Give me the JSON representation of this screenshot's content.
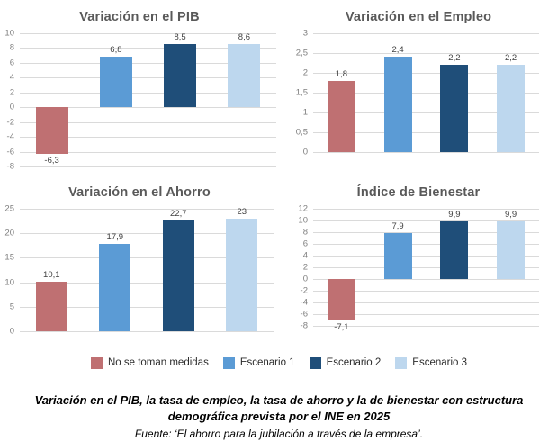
{
  "series_colors": [
    "#bf7072",
    "#5b9bd5",
    "#1f4e79",
    "#bdd7ee"
  ],
  "legend": {
    "items": [
      {
        "label": "No se toman medidas",
        "color": "#bf7072"
      },
      {
        "label": "Escenario 1",
        "color": "#5b9bd5"
      },
      {
        "label": "Escenario 2",
        "color": "#1f4e79"
      },
      {
        "label": "Escenario 3",
        "color": "#bdd7ee"
      }
    ]
  },
  "caption": {
    "title": "Variación en el PIB, la tasa de empleo, la tasa de ahorro y la de bienestar con estructura demográfica prevista por el INE en 2025",
    "source": "Fuente: ‘El ahorro para la jubilación a través de la empresa’."
  },
  "chart_data": [
    {
      "type": "bar",
      "title": "Variación en el PIB",
      "categories": [
        "No se toman medidas",
        "Escenario 1",
        "Escenario 2",
        "Escenario 3"
      ],
      "values": [
        -6.3,
        6.8,
        8.5,
        8.6
      ],
      "value_labels": [
        "-6,3",
        "6,8",
        "8,5",
        "8,6"
      ],
      "ylim": [
        -8,
        10
      ],
      "ytick_step": 2,
      "grid": true,
      "legend_position": "bottom"
    },
    {
      "type": "bar",
      "title": "Variación en el Empleo",
      "categories": [
        "No se toman medidas",
        "Escenario 1",
        "Escenario 2",
        "Escenario 3"
      ],
      "values": [
        1.8,
        2.4,
        2.2,
        2.2
      ],
      "value_labels": [
        "1,8",
        "2,4",
        "2,2",
        "2,2"
      ],
      "ylim": [
        0,
        3
      ],
      "ytick_step": 0.5,
      "grid": true,
      "legend_position": "bottom"
    },
    {
      "type": "bar",
      "title": "Variación en el Ahorro",
      "categories": [
        "No se toman medidas",
        "Escenario 1",
        "Escenario 2",
        "Escenario 3"
      ],
      "values": [
        10.1,
        17.9,
        22.7,
        23
      ],
      "value_labels": [
        "10,1",
        "17,9",
        "22,7",
        "23"
      ],
      "ylim": [
        0,
        25
      ],
      "ytick_step": 5,
      "grid": true,
      "legend_position": "bottom"
    },
    {
      "type": "bar",
      "title": "Índice de Bienestar",
      "categories": [
        "No se toman medidas",
        "Escenario 1",
        "Escenario 2",
        "Escenario 3"
      ],
      "values": [
        -7.1,
        7.9,
        9.9,
        9.9
      ],
      "value_labels": [
        "-7,1",
        "7,9",
        "9,9",
        "9,9"
      ],
      "ylim": [
        -8,
        12
      ],
      "ytick_step": 2,
      "grid": true,
      "legend_position": "bottom"
    }
  ]
}
